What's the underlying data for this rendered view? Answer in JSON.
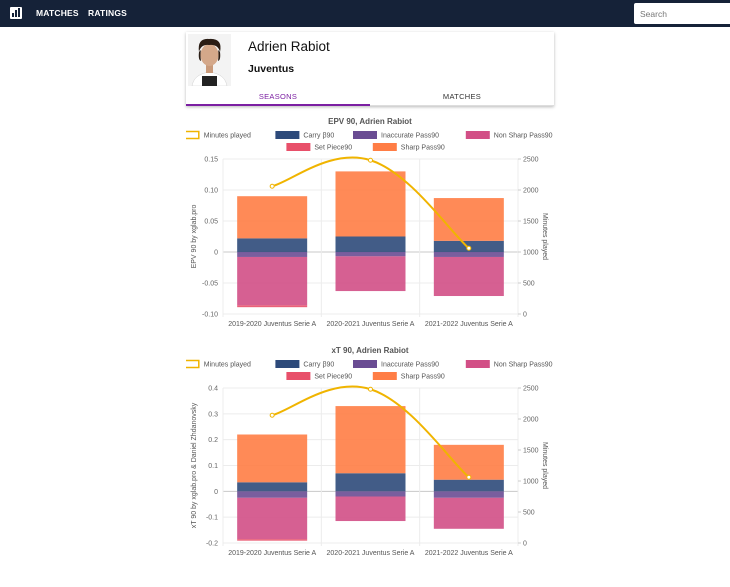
{
  "navbar": {
    "matches_label": "MATCHES",
    "ratings_label": "RATINGS",
    "search_placeholder": "Search"
  },
  "player": {
    "name": "Adrien Rabiot",
    "team": "Juventus"
  },
  "tabs": [
    {
      "label": "SEASONS",
      "active": true
    },
    {
      "label": "MATCHES",
      "active": false
    }
  ],
  "colors": {
    "minutes": "#f0b400",
    "carry": "#2d4a7a",
    "inaccurate": "#6a4c93",
    "nonsharp": "#d24f86",
    "setpiece": "#e8506a",
    "sharp": "#ff7d45"
  },
  "chart_data": [
    {
      "type": "bar",
      "title": "EPV 90, Adrien Rabiot",
      "ylabel": "EPV 90 by xglab.pro",
      "y2label": "Minutes played",
      "ylim": [
        -0.1,
        0.15
      ],
      "y2lim": [
        0,
        2500
      ],
      "yticks": [
        "0.15",
        "0.10",
        "0.05",
        "0",
        "-0.05",
        "-0.10"
      ],
      "yticks_values": [
        0.15,
        0.1,
        0.05,
        0,
        -0.05,
        -0.1
      ],
      "y2ticks": [
        "2500",
        "2000",
        "1500",
        "1000",
        "500",
        "0"
      ],
      "y2ticks_values": [
        2500,
        2000,
        1500,
        1000,
        500,
        0
      ],
      "categories": [
        "2019-2020 Juventus Serie A",
        "2020-2021 Juventus Serie A",
        "2021-2022 Juventus Serie A"
      ],
      "legend": [
        "Minutes played",
        "Carry β90",
        "Inaccurate Pass90",
        "Non Sharp Pass90",
        "Set Piece90",
        "Sharp Pass90"
      ],
      "series": [
        {
          "name": "Carry β90",
          "color_key": "carry",
          "values": [
            0.022,
            0.025,
            0.018
          ]
        },
        {
          "name": "Sharp Pass90",
          "color_key": "sharp",
          "values": [
            0.068,
            0.105,
            0.069
          ]
        },
        {
          "name": "Inaccurate Pass90",
          "color_key": "inaccurate",
          "values": [
            -0.008,
            -0.007,
            -0.008
          ]
        },
        {
          "name": "Non Sharp Pass90",
          "color_key": "nonsharp",
          "values": [
            -0.078,
            -0.056,
            -0.063
          ]
        },
        {
          "name": "Set Piece90",
          "color_key": "setpiece",
          "values": [
            -0.003,
            0,
            0
          ]
        }
      ],
      "minutes": [
        2060,
        2480,
        1060
      ]
    },
    {
      "type": "bar",
      "title": "xT 90, Adrien Rabiot",
      "ylabel": "xT 90 by xglab.pro & Daniel Zhdanovsky",
      "y2label": "Minutes played",
      "ylim": [
        -0.2,
        0.4
      ],
      "y2lim": [
        0,
        2500
      ],
      "yticks": [
        "0.4",
        "0.3",
        "0.2",
        "0.1",
        "0",
        "-0.1",
        "-0.2"
      ],
      "yticks_values": [
        0.4,
        0.3,
        0.2,
        0.1,
        0,
        -0.1,
        -0.2
      ],
      "y2ticks": [
        "2500",
        "2000",
        "1500",
        "1000",
        "500",
        "0"
      ],
      "y2ticks_values": [
        2500,
        2000,
        1500,
        1000,
        500,
        0
      ],
      "categories": [
        "2019-2020 Juventus Serie A",
        "2020-2021 Juventus Serie A",
        "2021-2022 Juventus Serie A"
      ],
      "legend": [
        "Minutes played",
        "Carry β90",
        "Inaccurate Pass90",
        "Non Sharp Pass90",
        "Set Piece90",
        "Sharp Pass90"
      ],
      "series": [
        {
          "name": "Carry β90",
          "color_key": "carry",
          "values": [
            0.035,
            0.07,
            0.045
          ]
        },
        {
          "name": "Sharp Pass90",
          "color_key": "sharp",
          "values": [
            0.185,
            0.26,
            0.135
          ]
        },
        {
          "name": "Inaccurate Pass90",
          "color_key": "inaccurate",
          "values": [
            -0.025,
            -0.02,
            -0.025
          ]
        },
        {
          "name": "Non Sharp Pass90",
          "color_key": "nonsharp",
          "values": [
            -0.16,
            -0.095,
            -0.12
          ]
        },
        {
          "name": "Set Piece90",
          "color_key": "setpiece",
          "values": [
            -0.006,
            0,
            0
          ]
        }
      ],
      "minutes": [
        2060,
        2480,
        1060
      ]
    }
  ]
}
